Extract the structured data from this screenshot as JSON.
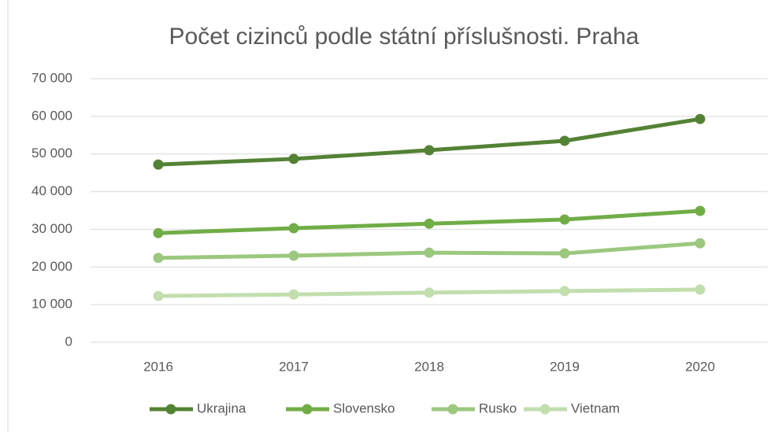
{
  "chart_data": {
    "type": "line",
    "title": "Počet cizinců podle státní příslušnosti. Praha",
    "categories": [
      "2016",
      "2017",
      "2018",
      "2019",
      "2020"
    ],
    "series": [
      {
        "name": "Ukrajina",
        "color": "#548235",
        "values": [
          47200,
          48700,
          51000,
          53500,
          59300
        ]
      },
      {
        "name": "Slovensko",
        "color": "#70ad47",
        "values": [
          29000,
          30300,
          31500,
          32600,
          34900
        ]
      },
      {
        "name": "Rusko",
        "color": "#9cc87f",
        "values": [
          22400,
          23000,
          23800,
          23600,
          26300
        ]
      },
      {
        "name": "Vietnam",
        "color": "#c2deae",
        "values": [
          12300,
          12700,
          13200,
          13600,
          14000
        ]
      }
    ],
    "ylim": [
      0,
      70000
    ],
    "yticks": [
      0,
      {
        "value": 10000,
        "label": "10 000"
      },
      {
        "value": 20000,
        "label": "20 000"
      },
      {
        "value": 30000,
        "label": "30 000"
      },
      {
        "value": 40000,
        "label": "40 000"
      },
      {
        "value": 50000,
        "label": "50 000"
      },
      {
        "value": 60000,
        "label": "60 000"
      },
      {
        "value": 70000,
        "label": "70 000"
      }
    ],
    "grid": true,
    "legend": "bottom"
  }
}
